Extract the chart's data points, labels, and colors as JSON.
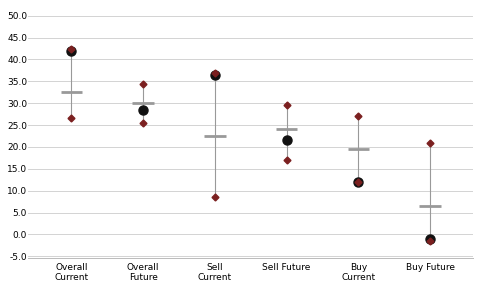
{
  "categories": [
    "Overall\nCurrent",
    "Overall\nFuture",
    "Sell\nCurrent",
    "Sell Future",
    "Buy\nCurrent",
    "Buy Future"
  ],
  "max_vals": [
    42.5,
    34.5,
    37.0,
    29.5,
    27.0,
    21.0
  ],
  "min_vals": [
    26.5,
    25.5,
    8.5,
    17.0,
    12.0,
    -1.5
  ],
  "avg_vals": [
    32.5,
    30.0,
    22.5,
    24.0,
    19.5,
    6.5
  ],
  "current_vals": [
    42.0,
    28.5,
    36.5,
    21.5,
    12.0,
    -1.0
  ],
  "dot_color_red": "#7B2020",
  "dot_color_black": "#111111",
  "avg_color": "#999999",
  "line_color": "#999999",
  "bg_color": "#ffffff",
  "grid_color": "#cccccc",
  "ylim": [
    -5.5,
    52.0
  ],
  "yticks": [
    50.0,
    45.0,
    40.0,
    35.0,
    30.0,
    25.0,
    20.0,
    15.0,
    10.0,
    5.0,
    0.0,
    -5.0
  ]
}
